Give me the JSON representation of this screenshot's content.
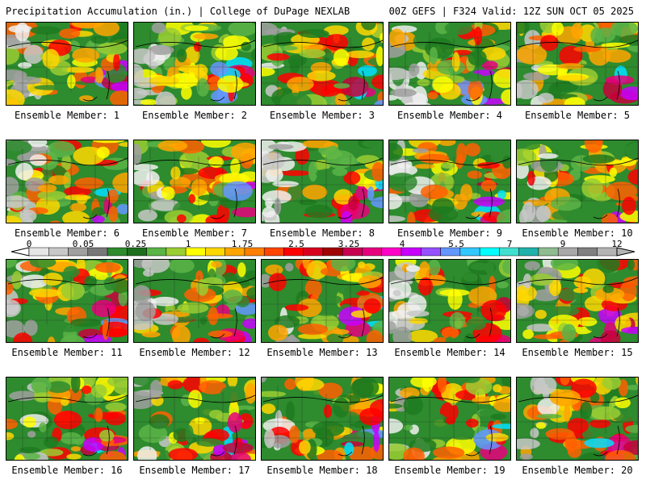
{
  "header": {
    "title_left": "Precipitation Accumulation (in.) | College of DuPage NEXLAB",
    "title_right": "00Z GEFS | F324 Valid: 12Z SUN OCT 05 2025"
  },
  "panels": [
    {
      "label": "Ensemble Member: 1"
    },
    {
      "label": "Ensemble Member: 2"
    },
    {
      "label": "Ensemble Member: 3"
    },
    {
      "label": "Ensemble Member: 4"
    },
    {
      "label": "Ensemble Member: 5"
    },
    {
      "label": "Ensemble Member: 6"
    },
    {
      "label": "Ensemble Member: 7"
    },
    {
      "label": "Ensemble Member: 8"
    },
    {
      "label": "Ensemble Member: 9"
    },
    {
      "label": "Ensemble Member: 10"
    },
    {
      "label": "Ensemble Member: 11"
    },
    {
      "label": "Ensemble Member: 12"
    },
    {
      "label": "Ensemble Member: 13"
    },
    {
      "label": "Ensemble Member: 14"
    },
    {
      "label": "Ensemble Member: 15"
    },
    {
      "label": "Ensemble Member: 16"
    },
    {
      "label": "Ensemble Member: 17"
    },
    {
      "label": "Ensemble Member: 18"
    },
    {
      "label": "Ensemble Member: 19"
    },
    {
      "label": "Ensemble Member: 20"
    }
  ],
  "colorbar": {
    "tick_labels": [
      "0",
      "0.05",
      "0.25",
      "1",
      "1.75",
      "2.5",
      "3.25",
      "4",
      "5.5",
      "7",
      "9",
      "12"
    ],
    "colors": [
      "#e6e6e6",
      "#c8c8c8",
      "#a0a0a0",
      "#787878",
      "#2e8b2e",
      "#1e6e1e",
      "#5ab446",
      "#9acd32",
      "#ffff00",
      "#ffd700",
      "#ffa500",
      "#ff7f00",
      "#ff4500",
      "#ff0000",
      "#d7001e",
      "#a00000",
      "#c80050",
      "#e6007d",
      "#ff00c8",
      "#c800ff",
      "#9650ff",
      "#6496ff",
      "#32c8ff",
      "#00ffff",
      "#40e0d0",
      "#20b2aa",
      "#8fbc8f",
      "#a9a9a9",
      "#808080",
      "#b4b4b4"
    ]
  }
}
